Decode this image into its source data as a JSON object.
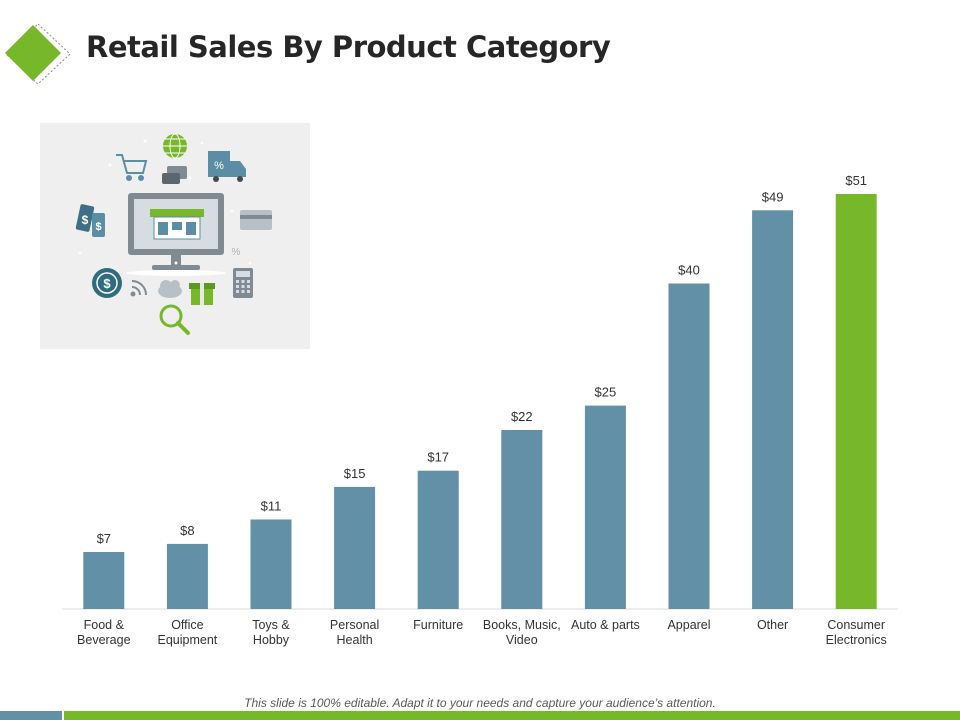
{
  "slide": {
    "title": "Retail Sales By Product Category",
    "footer_note": "This slide is 100% editable. Adapt it to your needs and capture your audience’s attention."
  },
  "colors": {
    "bar": "#6290a6",
    "highlight": "#76b82a",
    "axis": "#d9d9d9",
    "label": "#333333",
    "title": "#262626",
    "illustration_bg": "#efefef",
    "bottom_bar_left": "#6290a6",
    "bottom_bar_right": "#76b82a"
  },
  "illustration": {
    "icons": [
      "monitor-store-icon",
      "shopping-cart-icon",
      "globe-icon",
      "discount-truck-icon",
      "price-tags-icon",
      "credit-card-icon",
      "calculator-icon",
      "dollar-coin-icon",
      "wifi-icon",
      "cloud-icon",
      "gift-icon",
      "magnifier-icon",
      "chat-icon"
    ]
  },
  "chart_data": {
    "type": "bar",
    "title": "",
    "xlabel": "",
    "ylabel": "",
    "ylim": [
      0,
      55
    ],
    "grid": false,
    "legend": "none",
    "value_prefix": "$",
    "categories": [
      [
        "Food &",
        "Beverage"
      ],
      [
        "Office",
        "Equipment"
      ],
      [
        "Toys &",
        "Hobby"
      ],
      [
        "Personal",
        "Health"
      ],
      [
        "Furniture"
      ],
      [
        "Books, Music,",
        "Video"
      ],
      [
        "Auto & parts"
      ],
      [
        "Apparel"
      ],
      [
        "Other"
      ],
      [
        "Consumer",
        "Electronics"
      ]
    ],
    "values": [
      7,
      8,
      11,
      15,
      17,
      22,
      25,
      40,
      49,
      51
    ],
    "data_labels": [
      "$7",
      "$8",
      "$11",
      "$15",
      "$17",
      "$22",
      "$25",
      "$40",
      "$49",
      "$51"
    ],
    "highlighted_index": 9
  }
}
